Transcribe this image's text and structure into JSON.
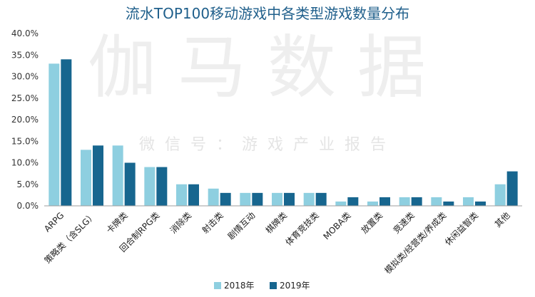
{
  "chart_data": {
    "type": "bar",
    "title": "流水TOP100移动游戏中各类型游戏数量分布",
    "xlabel": "",
    "ylabel": "",
    "ylim": [
      0,
      40
    ],
    "y_ticks": [
      "0.0%",
      "5.0%",
      "10.0%",
      "15.0%",
      "20.0%",
      "25.0%",
      "30.0%",
      "35.0%",
      "40.0%"
    ],
    "grid": false,
    "legend_position": "bottom",
    "categories": [
      "ARPG",
      "策略类（含SLG）",
      "卡牌类",
      "回合制RPG类",
      "消除类",
      "射击类",
      "剧情互动",
      "棋牌类",
      "体育竞技类",
      "MOBA类",
      "放置类",
      "竞速类",
      "模拟类/经营类/养成类",
      "休闲益智类",
      "其他"
    ],
    "series": [
      {
        "name": "2018年",
        "color": "#8ecfe0",
        "values": [
          33,
          13,
          14,
          9,
          5,
          4,
          3,
          3,
          3,
          1,
          1,
          2,
          2,
          2,
          5
        ]
      },
      {
        "name": "2019年",
        "color": "#17668f",
        "values": [
          34,
          14,
          10,
          9,
          5,
          3,
          3,
          3,
          3,
          2,
          2,
          2,
          1,
          1,
          8
        ]
      }
    ]
  },
  "watermark": {
    "main": "伽马数据",
    "sub": "微信号：游戏产业报告"
  },
  "colors": {
    "title": "#1f5f8b",
    "axis": "#9e9e9e"
  }
}
